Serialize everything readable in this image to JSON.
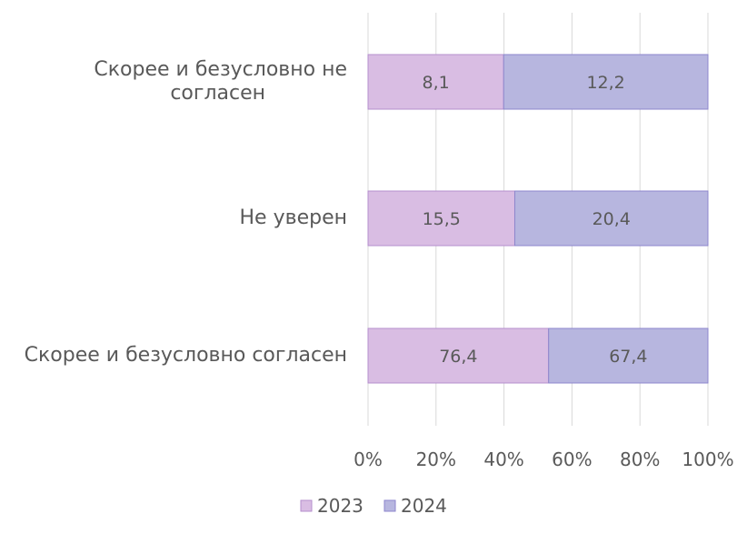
{
  "chart_data": {
    "type": "bar",
    "orientation": "horizontal",
    "stacked": "percent",
    "categories": [
      "Скорее и безусловно не согласен",
      "Не уверен",
      "Скорее и безусловно согласен"
    ],
    "series": [
      {
        "name": "2023",
        "values": [
          8.1,
          15.5,
          76.4
        ],
        "labels": [
          "8,1",
          "15,5",
          "76,4"
        ],
        "color": "#d9bde3",
        "stroke": "#b58fce"
      },
      {
        "name": "2024",
        "values": [
          12.2,
          20.4,
          67.4
        ],
        "labels": [
          "12,2",
          "20,4",
          "67,4"
        ],
        "color": "#b7b6df",
        "stroke": "#8c86cc"
      }
    ],
    "x_ticks": [
      "0%",
      "20%",
      "40%",
      "60%",
      "80%",
      "100%"
    ],
    "xlim": [
      0,
      100
    ],
    "grid": true,
    "legend": "bottom",
    "title": "",
    "xlabel": "",
    "ylabel": ""
  }
}
